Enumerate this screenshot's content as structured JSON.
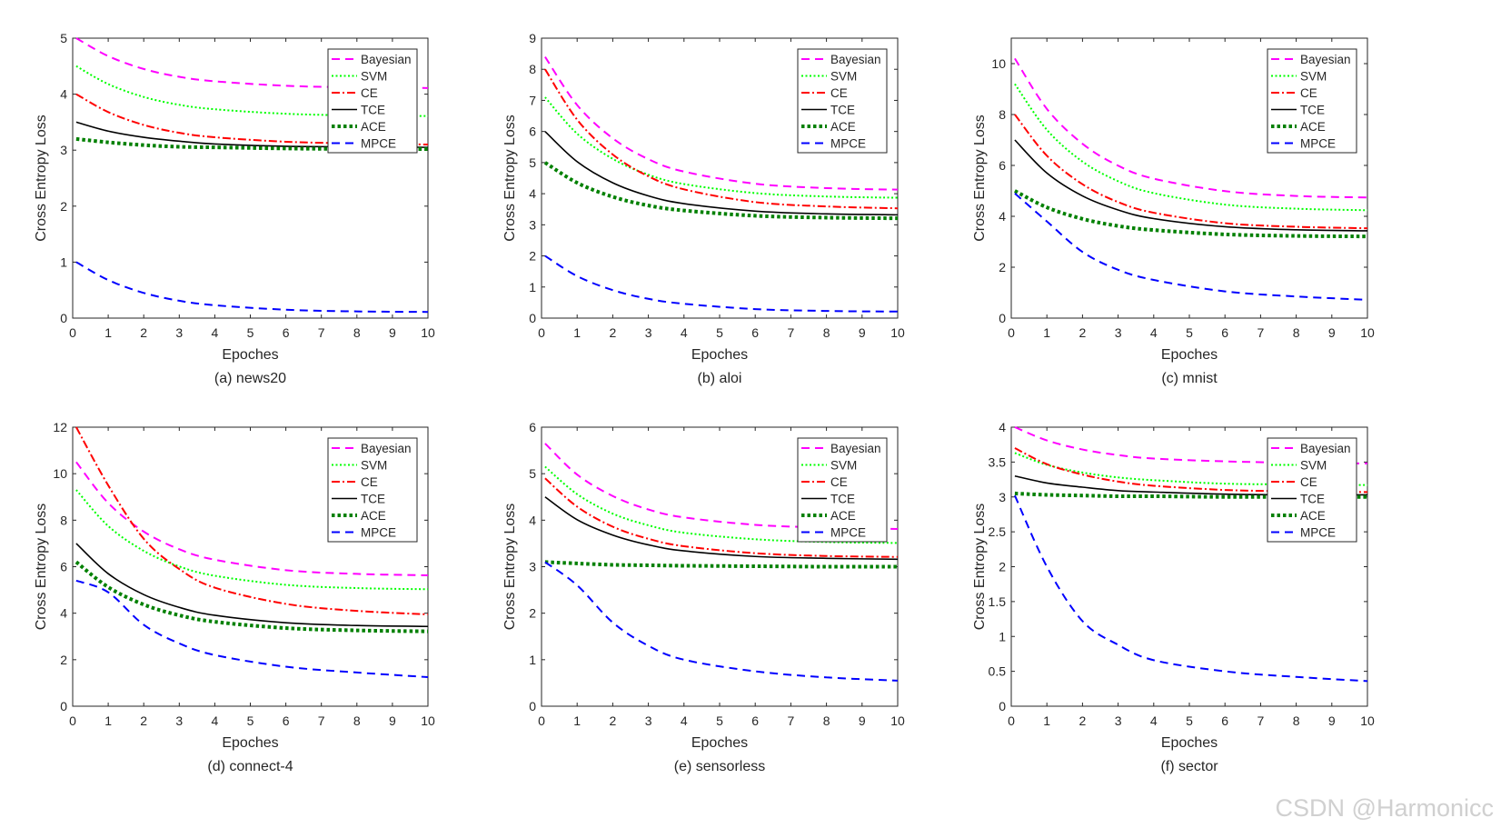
{
  "watermark": "CSDN @Harmonicc",
  "chart_data": [
    {
      "type": "line",
      "caption": "(a) news20",
      "xlabel": "Epoches",
      "ylabel": "Cross Entropy Loss",
      "xlim": [
        0,
        10
      ],
      "ylim": [
        0,
        5
      ],
      "yticks": [
        0,
        1,
        2,
        3,
        4,
        5
      ],
      "xticks": [
        0,
        1,
        2,
        3,
        4,
        5,
        6,
        7,
        8,
        9,
        10
      ],
      "legend": "top-right",
      "grid": false,
      "x": [
        0.1,
        1,
        2,
        3,
        4,
        6,
        8,
        10
      ],
      "series": [
        {
          "name": "Bayesian",
          "color": "#ff00ff",
          "values": [
            5.0,
            4.68,
            4.45,
            4.31,
            4.23,
            4.15,
            4.12,
            4.11
          ]
        },
        {
          "name": "SVM",
          "color": "#00ff00",
          "values": [
            4.5,
            4.18,
            3.95,
            3.81,
            3.73,
            3.65,
            3.62,
            3.61
          ]
        },
        {
          "name": "CE",
          "color": "#ff0000",
          "values": [
            4.0,
            3.68,
            3.45,
            3.31,
            3.23,
            3.15,
            3.12,
            3.1
          ]
        },
        {
          "name": "TCE",
          "color": "#000000",
          "values": [
            3.5,
            3.34,
            3.23,
            3.16,
            3.11,
            3.07,
            3.06,
            3.05
          ]
        },
        {
          "name": "ACE",
          "color": "#008000",
          "values": [
            3.2,
            3.14,
            3.09,
            3.06,
            3.05,
            3.03,
            3.02,
            3.02
          ]
        },
        {
          "name": "MPCE",
          "color": "#0000ff",
          "values": [
            1.0,
            0.68,
            0.45,
            0.31,
            0.23,
            0.15,
            0.12,
            0.11
          ]
        }
      ]
    },
    {
      "type": "line",
      "caption": "(b) aloi",
      "xlabel": "Epoches",
      "ylabel": "Cross Entropy Loss",
      "xlim": [
        0,
        10
      ],
      "ylim": [
        0,
        9
      ],
      "yticks": [
        0,
        1,
        2,
        3,
        4,
        5,
        6,
        7,
        8,
        9
      ],
      "xticks": [
        0,
        1,
        2,
        3,
        4,
        5,
        6,
        7,
        8,
        9,
        10
      ],
      "legend": "top-right",
      "grid": false,
      "x": [
        0.1,
        1,
        2,
        3,
        4,
        6,
        8,
        10
      ],
      "series": [
        {
          "name": "Bayesian",
          "color": "#ff00ff",
          "values": [
            8.4,
            6.85,
            5.78,
            5.11,
            4.71,
            4.32,
            4.18,
            4.13
          ]
        },
        {
          "name": "SVM",
          "color": "#00ff00",
          "values": [
            7.1,
            5.93,
            5.12,
            4.61,
            4.31,
            4.02,
            3.91,
            3.87
          ]
        },
        {
          "name": "CE",
          "color": "#ff0000",
          "values": [
            8.0,
            6.38,
            5.26,
            4.56,
            4.14,
            3.73,
            3.59,
            3.53
          ]
        },
        {
          "name": "TCE",
          "color": "#000000",
          "values": [
            6.0,
            5.03,
            4.35,
            3.93,
            3.68,
            3.44,
            3.35,
            3.32
          ]
        },
        {
          "name": "ACE",
          "color": "#008000",
          "values": [
            5.0,
            4.35,
            3.9,
            3.62,
            3.46,
            3.29,
            3.23,
            3.21
          ]
        },
        {
          "name": "MPCE",
          "color": "#0000ff",
          "values": [
            2.0,
            1.35,
            0.9,
            0.62,
            0.46,
            0.29,
            0.23,
            0.21
          ]
        }
      ]
    },
    {
      "type": "line",
      "caption": "(c) mnist",
      "xlabel": "Epoches",
      "ylabel": "Cross Entropy Loss",
      "xlim": [
        0,
        10
      ],
      "ylim": [
        0,
        11
      ],
      "yticks": [
        0,
        2,
        4,
        6,
        8,
        10
      ],
      "xticks": [
        0,
        1,
        2,
        3,
        4,
        5,
        6,
        7,
        8,
        9,
        10
      ],
      "legend": "top-right",
      "grid": false,
      "x": [
        0.1,
        1,
        2,
        3,
        4,
        6,
        8,
        10
      ],
      "series": [
        {
          "name": "Bayesian",
          "color": "#ff00ff",
          "values": [
            10.2,
            8.22,
            6.85,
            5.99,
            5.48,
            4.99,
            4.8,
            4.74
          ]
        },
        {
          "name": "SVM",
          "color": "#00ff00",
          "values": [
            9.2,
            7.4,
            6.15,
            5.38,
            4.91,
            4.46,
            4.3,
            4.24
          ]
        },
        {
          "name": "CE",
          "color": "#ff0000",
          "values": [
            8.0,
            6.38,
            5.26,
            4.56,
            4.14,
            3.73,
            3.59,
            3.53
          ]
        },
        {
          "name": "TCE",
          "color": "#000000",
          "values": [
            7.0,
            5.7,
            4.8,
            4.25,
            3.91,
            3.59,
            3.47,
            3.43
          ]
        },
        {
          "name": "ACE",
          "color": "#008000",
          "values": [
            5.0,
            4.35,
            3.9,
            3.62,
            3.46,
            3.29,
            3.23,
            3.21
          ]
        },
        {
          "name": "MPCE",
          "color": "#0000ff",
          "values": [
            4.9,
            3.8,
            2.6,
            1.9,
            1.5,
            1.05,
            0.85,
            0.72
          ]
        }
      ]
    },
    {
      "type": "line",
      "caption": "(d) connect-4",
      "xlabel": "Epoches",
      "ylabel": "Cross Entropy Loss",
      "xlim": [
        0,
        10
      ],
      "ylim": [
        0,
        12
      ],
      "yticks": [
        0,
        2,
        4,
        6,
        8,
        10,
        12
      ],
      "xticks": [
        0,
        1,
        2,
        3,
        4,
        5,
        6,
        7,
        8,
        9,
        10
      ],
      "legend": "top-right",
      "grid": false,
      "x": [
        0.1,
        1,
        2,
        3,
        4,
        6,
        8,
        10
      ],
      "series": [
        {
          "name": "Bayesian",
          "color": "#ff00ff",
          "values": [
            10.5,
            8.74,
            7.51,
            6.75,
            6.3,
            5.85,
            5.69,
            5.63
          ]
        },
        {
          "name": "SVM",
          "color": "#00ff00",
          "values": [
            9.3,
            7.75,
            6.68,
            6.01,
            5.61,
            5.22,
            5.08,
            5.03
          ]
        },
        {
          "name": "CE",
          "color": "#ff0000",
          "values": [
            12.0,
            9.5,
            7.2,
            5.9,
            5.1,
            4.4,
            4.1,
            3.95
          ]
        },
        {
          "name": "TCE",
          "color": "#000000",
          "values": [
            7.0,
            5.7,
            4.8,
            4.25,
            3.91,
            3.59,
            3.47,
            3.43
          ]
        },
        {
          "name": "ACE",
          "color": "#008000",
          "values": [
            6.2,
            5.12,
            4.37,
            3.91,
            3.63,
            3.36,
            3.26,
            3.22
          ]
        },
        {
          "name": "MPCE",
          "color": "#0000ff",
          "values": [
            5.4,
            4.9,
            3.5,
            2.7,
            2.2,
            1.7,
            1.45,
            1.25
          ]
        }
      ]
    },
    {
      "type": "line",
      "caption": "(e) sensorless",
      "xlabel": "Epoches",
      "ylabel": "Cross Entropy Loss",
      "xlim": [
        0,
        10
      ],
      "ylim": [
        0,
        6
      ],
      "yticks": [
        0,
        1,
        2,
        3,
        4,
        5,
        6
      ],
      "xticks": [
        0,
        1,
        2,
        3,
        4,
        5,
        6,
        7,
        8,
        9,
        10
      ],
      "legend": "top-right",
      "grid": false,
      "x": [
        0.1,
        1,
        2,
        3,
        4,
        6,
        8,
        10
      ],
      "series": [
        {
          "name": "Bayesian",
          "color": "#ff00ff",
          "values": [
            5.65,
            4.98,
            4.52,
            4.23,
            4.06,
            3.9,
            3.84,
            3.81
          ]
        },
        {
          "name": "SVM",
          "color": "#00ff00",
          "values": [
            5.15,
            4.56,
            4.14,
            3.89,
            3.73,
            3.59,
            3.53,
            3.51
          ]
        },
        {
          "name": "CE",
          "color": "#ff0000",
          "values": [
            4.9,
            4.29,
            3.86,
            3.6,
            3.44,
            3.29,
            3.23,
            3.21
          ]
        },
        {
          "name": "TCE",
          "color": "#000000",
          "values": [
            4.5,
            4.01,
            3.68,
            3.47,
            3.34,
            3.22,
            3.18,
            3.16
          ]
        },
        {
          "name": "ACE",
          "color": "#008000",
          "values": [
            3.1,
            3.07,
            3.04,
            3.03,
            3.02,
            3.01,
            3.0,
            3.0
          ]
        },
        {
          "name": "MPCE",
          "color": "#0000ff",
          "values": [
            3.1,
            2.6,
            1.8,
            1.3,
            1.0,
            0.75,
            0.62,
            0.55
          ]
        }
      ]
    },
    {
      "type": "line",
      "caption": "(f) sector",
      "xlabel": "Epoches",
      "ylabel": "Cross Entropy Loss",
      "xlim": [
        0,
        10
      ],
      "ylim": [
        0,
        4
      ],
      "yticks": [
        0,
        0.5,
        1,
        1.5,
        2,
        2.5,
        3,
        3.5,
        4
      ],
      "xticks": [
        0,
        1,
        2,
        3,
        4,
        5,
        6,
        7,
        8,
        9,
        10
      ],
      "legend": "top-right",
      "grid": false,
      "x": [
        0.1,
        1,
        2,
        3,
        4,
        6,
        8,
        10
      ],
      "series": [
        {
          "name": "Bayesian",
          "color": "#ff00ff",
          "values": [
            4.0,
            3.81,
            3.68,
            3.6,
            3.55,
            3.51,
            3.49,
            3.48
          ]
        },
        {
          "name": "SVM",
          "color": "#00ff00",
          "values": [
            3.63,
            3.46,
            3.35,
            3.28,
            3.24,
            3.19,
            3.18,
            3.17
          ]
        },
        {
          "name": "CE",
          "color": "#ff0000",
          "values": [
            3.7,
            3.47,
            3.32,
            3.22,
            3.16,
            3.1,
            3.08,
            3.07
          ]
        },
        {
          "name": "TCE",
          "color": "#000000",
          "values": [
            3.3,
            3.2,
            3.14,
            3.09,
            3.07,
            3.04,
            3.03,
            3.03
          ]
        },
        {
          "name": "ACE",
          "color": "#008000",
          "values": [
            3.05,
            3.03,
            3.02,
            3.01,
            3.01,
            3.0,
            3.0,
            3.0
          ]
        },
        {
          "name": "MPCE",
          "color": "#0000ff",
          "values": [
            3.02,
            2.0,
            1.22,
            0.88,
            0.66,
            0.5,
            0.42,
            0.36
          ]
        }
      ]
    }
  ]
}
